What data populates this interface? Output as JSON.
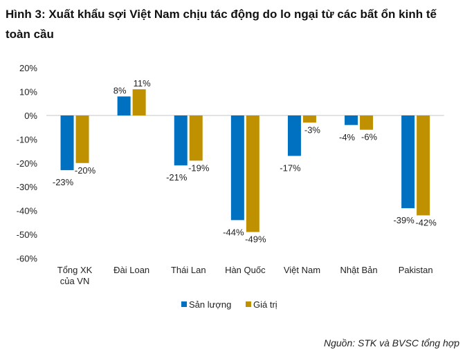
{
  "title": "Hình 3: Xuất khẩu sợi Việt Nam chịu tác động do lo ngại từ các bất ổn kinh tế toàn cầu",
  "source": "Nguồn: STK và BVSC tổng hợp",
  "chart_data": {
    "type": "bar",
    "title": "",
    "categories": [
      [
        "Tổng XK",
        "của VN"
      ],
      [
        "Đài Loan"
      ],
      [
        "Thái Lan"
      ],
      [
        "Hàn Quốc"
      ],
      [
        "Việt Nam"
      ],
      [
        "Nhật Bản"
      ],
      [
        "Pakistan"
      ]
    ],
    "series": [
      {
        "name": "Sản lượng",
        "color": "#0070C0",
        "values": [
          -23,
          8,
          -21,
          -44,
          -17,
          -4,
          -39
        ],
        "labels": [
          "-23%",
          "8%",
          "-21%",
          "-44%",
          "-17%",
          "-4%",
          "-39%"
        ]
      },
      {
        "name": "Giá trị",
        "color": "#BF9000",
        "values": [
          -20,
          11,
          -19,
          -49,
          -3,
          -6,
          -42
        ],
        "labels": [
          "-20%",
          "11%",
          "-19%",
          "-49%",
          "-3%",
          "-6%",
          "-42%"
        ]
      }
    ],
    "ylim": [
      -60,
      20
    ],
    "yticks": [
      "20%",
      "10%",
      "0%",
      "-10%",
      "-20%",
      "-30%",
      "-40%",
      "-50%",
      "-60%"
    ],
    "ytick_values": [
      20,
      10,
      0,
      -10,
      -20,
      -30,
      -40,
      -50,
      -60
    ],
    "grid": false,
    "legend": "bottom"
  }
}
